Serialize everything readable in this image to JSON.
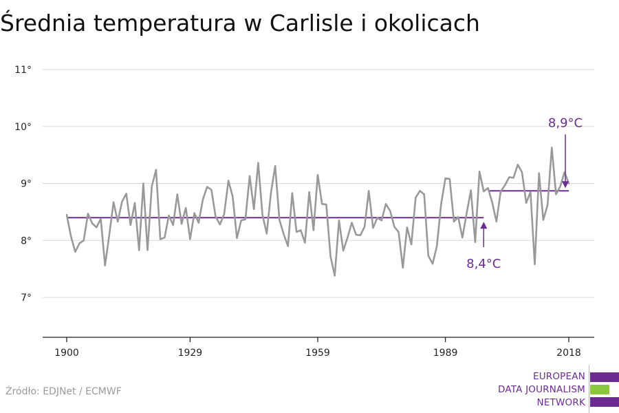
{
  "title": "Średnia temperatura w Carlisle i okolicach",
  "source": "Źródło: EDJNet / ECMWF",
  "logo": {
    "lines": [
      "EUROPEAN",
      "DATA JOURNALISM",
      "NETWORK"
    ],
    "colors": {
      "purple": "#6b2c91",
      "green": "#8dc63f"
    }
  },
  "colors": {
    "series": "#999999",
    "average": "#6b2c91",
    "grid": "#d9d9d9",
    "axis": "#222222"
  },
  "chart_data": {
    "type": "line",
    "title": "Średnia temperatura w Carlisle i okolicach",
    "xlabel": "",
    "ylabel": "",
    "xlim": [
      1900,
      2018
    ],
    "ylim": [
      6.3,
      11
    ],
    "x_ticks": [
      1900,
      1929,
      1959,
      1989,
      2018
    ],
    "y_ticks": [
      7,
      8,
      9,
      10,
      11
    ],
    "y_tick_labels": [
      "7°",
      "8°",
      "9°",
      "10°",
      "11°"
    ],
    "grid": true,
    "series": [
      {
        "x_start": 1900,
        "x_end": 2018,
        "values": [
          8.45,
          8.07,
          7.8,
          7.95,
          8.0,
          8.47,
          8.3,
          8.23,
          8.38,
          7.56,
          8.1,
          8.67,
          8.33,
          8.68,
          8.82,
          8.27,
          8.66,
          7.83,
          9.0,
          7.83,
          8.95,
          9.24,
          8.02,
          8.05,
          8.44,
          8.27,
          8.81,
          8.29,
          8.57,
          8.02,
          8.48,
          8.31,
          8.72,
          8.94,
          8.89,
          8.42,
          8.28,
          8.46,
          9.05,
          8.77,
          8.04,
          8.35,
          8.37,
          9.13,
          8.55,
          9.36,
          8.45,
          8.12,
          8.83,
          9.31,
          8.36,
          8.11,
          7.9,
          8.83,
          8.15,
          8.18,
          7.96,
          8.85,
          8.18,
          9.15,
          8.64,
          8.63,
          7.72,
          7.38,
          8.35,
          7.82,
          8.05,
          8.31,
          8.1,
          8.09,
          8.24,
          8.87,
          8.22,
          8.4,
          8.35,
          8.64,
          8.52,
          8.24,
          8.15,
          7.52,
          8.23,
          7.93,
          8.75,
          8.87,
          8.81,
          7.73,
          7.59,
          7.9,
          8.64,
          9.09,
          9.08,
          8.33,
          8.41,
          8.05,
          8.48,
          8.88,
          7.97,
          9.21,
          8.86,
          8.92,
          8.67,
          8.33,
          8.86,
          8.97,
          9.11,
          9.1,
          9.33,
          9.2,
          8.66,
          8.85,
          7.58,
          9.18,
          8.36,
          8.62,
          9.63,
          8.81,
          8.95,
          9.2,
          9.0
        ]
      }
    ],
    "averages": [
      {
        "label": "8,4°C",
        "value": 8.4,
        "x_from": 1900,
        "x_to": 1998
      },
      {
        "label": "8,9°C",
        "value": 8.87,
        "x_from": 1999,
        "x_to": 2018
      }
    ]
  }
}
